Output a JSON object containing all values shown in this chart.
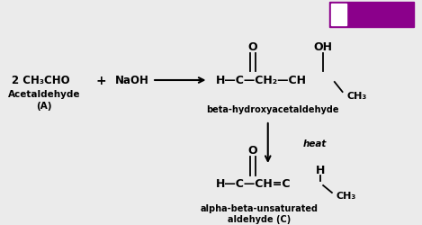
{
  "bg_color": "#ebebeb",
  "byju_box_color": "#8B008B",
  "left_reactant": "2 CH₃CHO",
  "left_label1": "Acetaldehyde",
  "left_label2": "(A)",
  "plus": "+",
  "reagent": "NaOH",
  "top_O": "O",
  "top_OH": "OH",
  "top_chain": "H—C—CH₂—CH",
  "top_CH3": "CH₃",
  "top_label": "beta-hydroxyacetaldehyde",
  "heat_label": "heat",
  "bot_O": "O",
  "bot_chain": "H—C—CH═C",
  "bot_H": "H",
  "bot_CH3": "CH₃",
  "bot_label1": "alpha-beta-unsaturated",
  "bot_label2": "aldehyde (C)"
}
